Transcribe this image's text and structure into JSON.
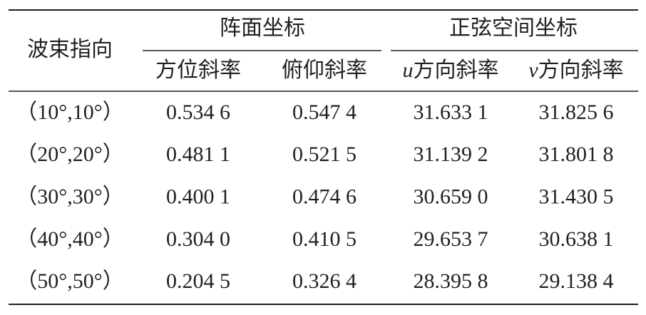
{
  "table": {
    "header": {
      "row_label": "波束指向",
      "groups": [
        "阵面坐标",
        "正弦空间坐标"
      ],
      "columns": [
        {
          "label": "方位斜率"
        },
        {
          "label": "俯仰斜率"
        },
        {
          "var": "u",
          "label": "方向斜率"
        },
        {
          "var": "v",
          "label": "方向斜率"
        }
      ]
    },
    "rows": [
      [
        "（10°,10°）",
        "0.534 6",
        "0.547 4",
        "31.633 1",
        "31.825 6"
      ],
      [
        "（20°,20°）",
        "0.481 1",
        "0.521 5",
        "31.139 2",
        "31.801 8"
      ],
      [
        "（30°,30°）",
        "0.400 1",
        "0.474 6",
        "30.659 0",
        "31.430 5"
      ],
      [
        "（40°,40°）",
        "0.304 0",
        "0.410 5",
        "29.653 7",
        "30.638 1"
      ],
      [
        "（50°,50°）",
        "0.204 5",
        "0.326 4",
        "28.395 8",
        "29.138 4"
      ]
    ]
  }
}
